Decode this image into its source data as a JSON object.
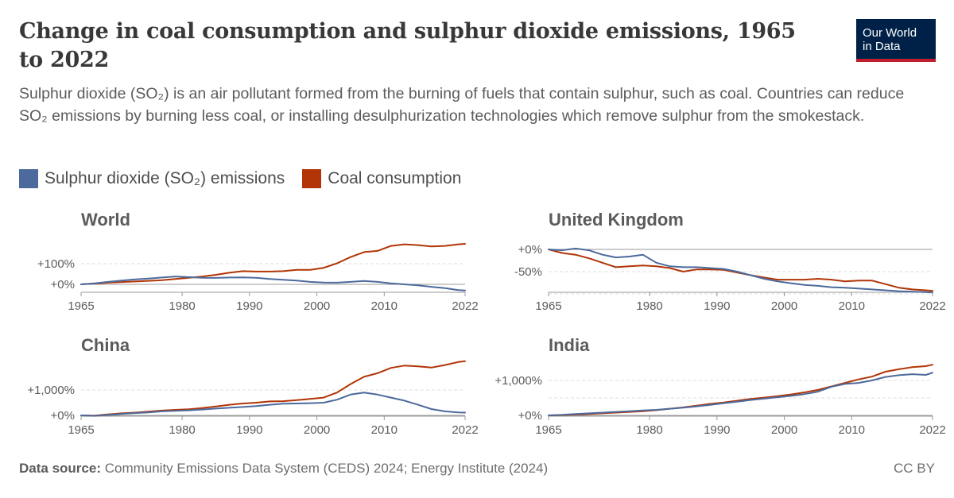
{
  "header": {
    "title": "Change in coal consumption and sulphur dioxide emissions, 1965 to 2022",
    "subtitle": "Sulphur dioxide (SO₂) is an air pollutant formed from the burning of fuels that contain sulphur, such as coal. Countries can reduce SO₂ emissions by burning less coal, or installing desulphurization technologies which remove sulphur from the smokestack.",
    "logo_line1": "Our World",
    "logo_line2": "in Data"
  },
  "legend": [
    {
      "label": "Sulphur dioxide (SO₂) emissions",
      "color": "#4c6a9c"
    },
    {
      "label": "Coal consumption",
      "color": "#b13507"
    }
  ],
  "footer": {
    "source_label": "Data source:",
    "source_text": "Community Emissions Data System (CEDS) 2024; Energy Institute (2024)",
    "license": "CC BY"
  },
  "chart_data": [
    {
      "type": "line",
      "title": "World",
      "x": [
        1965,
        1967,
        1969,
        1971,
        1973,
        1975,
        1977,
        1979,
        1981,
        1983,
        1985,
        1987,
        1989,
        1991,
        1993,
        1995,
        1997,
        1999,
        2001,
        2003,
        2005,
        2007,
        2009,
        2011,
        2013,
        2015,
        2017,
        2019,
        2021,
        2022
      ],
      "xticks": [
        1965,
        1980,
        1990,
        2000,
        2010,
        2022
      ],
      "yticks": [
        0,
        100
      ],
      "ytick_labels": [
        "+0%",
        "+100%"
      ],
      "ylim": [
        -40,
        200
      ],
      "series": [
        {
          "name": "Coal consumption",
          "color": "#b13507",
          "values": [
            0,
            4,
            8,
            11,
            14,
            17,
            20,
            26,
            32,
            38,
            46,
            56,
            64,
            62,
            62,
            64,
            70,
            70,
            80,
            102,
            132,
            156,
            162,
            186,
            194,
            190,
            184,
            186,
            194,
            196
          ]
        },
        {
          "name": "Sulphur dioxide (SO₂) emissions",
          "color": "#4c6a9c",
          "values": [
            0,
            5,
            12,
            18,
            24,
            28,
            33,
            38,
            35,
            32,
            31,
            33,
            34,
            32,
            26,
            22,
            18,
            12,
            9,
            8,
            12,
            16,
            12,
            5,
            0,
            -5,
            -12,
            -18,
            -28,
            -30
          ]
        }
      ]
    },
    {
      "type": "line",
      "title": "United Kingdom",
      "x": [
        1965,
        1967,
        1969,
        1971,
        1973,
        1975,
        1977,
        1979,
        1981,
        1983,
        1985,
        1987,
        1989,
        1991,
        1993,
        1995,
        1997,
        1999,
        2001,
        2003,
        2005,
        2007,
        2009,
        2011,
        2013,
        2015,
        2017,
        2019,
        2021,
        2022
      ],
      "xticks": [
        1965,
        1980,
        1990,
        2000,
        2010,
        2022
      ],
      "yticks": [
        0,
        -50
      ],
      "ytick_labels": [
        "+0%",
        "-50%"
      ],
      "ylim": [
        -100,
        15
      ],
      "series": [
        {
          "name": "Coal consumption",
          "color": "#b13507",
          "values": [
            0,
            -8,
            -12,
            -20,
            -30,
            -40,
            -38,
            -36,
            -38,
            -42,
            -50,
            -45,
            -45,
            -46,
            -52,
            -58,
            -63,
            -68,
            -68,
            -68,
            -66,
            -68,
            -72,
            -70,
            -70,
            -78,
            -86,
            -90,
            -92,
            -93
          ]
        },
        {
          "name": "Sulphur dioxide (SO₂) emissions",
          "color": "#4c6a9c",
          "values": [
            0,
            -2,
            2,
            -2,
            -12,
            -18,
            -16,
            -12,
            -30,
            -38,
            -40,
            -40,
            -42,
            -44,
            -50,
            -58,
            -66,
            -72,
            -76,
            -80,
            -82,
            -85,
            -86,
            -88,
            -90,
            -92,
            -94,
            -95,
            -96,
            -97
          ]
        }
      ]
    },
    {
      "type": "line",
      "title": "China",
      "x": [
        1965,
        1967,
        1969,
        1971,
        1973,
        1975,
        1977,
        1979,
        1981,
        1983,
        1985,
        1987,
        1989,
        1991,
        1993,
        1995,
        1997,
        1999,
        2001,
        2003,
        2005,
        2007,
        2009,
        2011,
        2013,
        2015,
        2017,
        2019,
        2021,
        2022
      ],
      "xticks": [
        1965,
        1980,
        1990,
        2000,
        2010,
        2022
      ],
      "yticks": [
        0,
        1000
      ],
      "ytick_labels": [
        "+0%",
        "+1,000%"
      ],
      "ylim": [
        -200,
        2200
      ],
      "series": [
        {
          "name": "Coal consumption",
          "color": "#b13507",
          "values": [
            0,
            -10,
            40,
            80,
            110,
            150,
            190,
            220,
            240,
            290,
            350,
            420,
            470,
            500,
            550,
            560,
            600,
            650,
            700,
            900,
            1230,
            1520,
            1660,
            1870,
            1960,
            1930,
            1880,
            1980,
            2100,
            2130
          ]
        },
        {
          "name": "Sulphur dioxide (SO₂) emissions",
          "color": "#4c6a9c",
          "values": [
            0,
            -20,
            20,
            60,
            90,
            120,
            160,
            180,
            200,
            230,
            270,
            300,
            330,
            370,
            420,
            460,
            470,
            480,
            500,
            620,
            820,
            900,
            820,
            700,
            580,
            420,
            250,
            160,
            120,
            110
          ]
        }
      ]
    },
    {
      "type": "line",
      "title": "India",
      "x": [
        1965,
        1967,
        1969,
        1971,
        1973,
        1975,
        1977,
        1979,
        1981,
        1983,
        1985,
        1987,
        1989,
        1991,
        1993,
        1995,
        1997,
        1999,
        2001,
        2003,
        2005,
        2007,
        2009,
        2011,
        2013,
        2015,
        2017,
        2019,
        2021,
        2022
      ],
      "xticks": [
        1965,
        1980,
        1990,
        2000,
        2010,
        2022
      ],
      "yticks": [
        0,
        1000
      ],
      "ytick_labels": [
        "+0%",
        "+1,000%"
      ],
      "ylim": [
        -50,
        1400
      ],
      "series": [
        {
          "name": "Coal consumption",
          "color": "#b13507",
          "values": [
            0,
            10,
            25,
            40,
            60,
            80,
            100,
            120,
            150,
            190,
            230,
            280,
            330,
            370,
            420,
            470,
            510,
            550,
            600,
            660,
            730,
            830,
            930,
            1030,
            1110,
            1250,
            1320,
            1380,
            1410,
            1450
          ]
        },
        {
          "name": "Sulphur dioxide (SO₂) emissions",
          "color": "#4c6a9c",
          "values": [
            0,
            15,
            40,
            60,
            80,
            100,
            120,
            140,
            160,
            190,
            220,
            260,
            300,
            350,
            390,
            440,
            480,
            520,
            560,
            610,
            680,
            820,
            900,
            930,
            1000,
            1100,
            1150,
            1180,
            1160,
            1220
          ]
        }
      ]
    }
  ]
}
